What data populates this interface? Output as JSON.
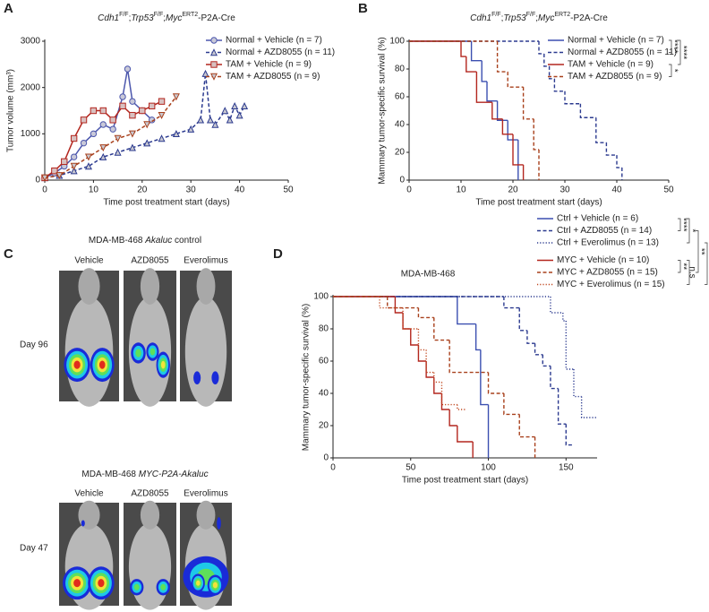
{
  "panel_labels": [
    "A",
    "B",
    "C",
    "D"
  ],
  "chart_data": [
    {
      "type": "line",
      "title": [
        "Cdh1",
        "F/F",
        ";",
        "Trp53",
        "F/F",
        ";",
        "Myc",
        "ERT2",
        "-P2A-Cre"
      ],
      "x_label": "Time post treatment start (days)",
      "y_label": "Tumor volume (mm³)",
      "xlim": [
        0,
        50
      ],
      "xticks": [
        0,
        10,
        20,
        30,
        40,
        50
      ],
      "ylim": [
        0,
        3000
      ],
      "yticks": [
        0,
        1000,
        2000,
        3000
      ],
      "series": [
        {
          "name": "Normal + Vehicle (n = 7)",
          "color": "#4c57ad",
          "dash": "solid",
          "marker": "circle",
          "x": [
            0,
            2,
            4,
            6,
            8,
            10,
            12,
            14,
            16,
            17,
            18,
            20,
            22
          ],
          "values": [
            50,
            150,
            300,
            500,
            800,
            1000,
            1200,
            1100,
            1800,
            2400,
            1700,
            1500,
            1300
          ]
        },
        {
          "name": "Normal + AZD8055 (n = 11)",
          "color": "#2b3a8f",
          "dash": "dashed",
          "marker": "triangle-up",
          "x": [
            0,
            3,
            6,
            9,
            12,
            15,
            18,
            21,
            24,
            27,
            30,
            32,
            33,
            34,
            35,
            37,
            38,
            39,
            40,
            41
          ],
          "values": [
            50,
            100,
            200,
            300,
            500,
            600,
            700,
            800,
            900,
            1000,
            1100,
            1300,
            2300,
            1300,
            1200,
            1500,
            1300,
            1600,
            1400,
            1600
          ]
        },
        {
          "name": "TAM + Vehicle (n = 9)",
          "color": "#b3261e",
          "dash": "solid",
          "marker": "square",
          "x": [
            0,
            2,
            4,
            6,
            8,
            10,
            12,
            14,
            16,
            18,
            20,
            22,
            24
          ],
          "values": [
            50,
            200,
            400,
            900,
            1300,
            1500,
            1500,
            1300,
            1600,
            1400,
            1500,
            1600,
            1700
          ]
        },
        {
          "name": "TAM + AZD8055 (n = 9)",
          "color": "#a8401c",
          "dash": "dashed",
          "marker": "triangle-down",
          "x": [
            0,
            3,
            6,
            9,
            12,
            15,
            18,
            21,
            24,
            27
          ],
          "values": [
            50,
            100,
            300,
            500,
            700,
            900,
            1000,
            1200,
            1400,
            1800
          ]
        }
      ]
    },
    {
      "type": "step",
      "title": [
        "Cdh1",
        "F/F",
        ";",
        "Trp53",
        "F/F",
        ";",
        "Myc",
        "ERT2",
        "-P2A-Cre"
      ],
      "x_label": "Time post treatment start (days)",
      "y_label": "Mammary tumor-specific survival (%)",
      "xlim": [
        0,
        50
      ],
      "xticks": [
        0,
        10,
        20,
        30,
        40,
        50
      ],
      "ylim": [
        0,
        100
      ],
      "yticks": [
        0,
        20,
        40,
        60,
        80,
        100
      ],
      "annotations": [
        "****",
        "*",
        "****"
      ],
      "series": [
        {
          "name": "Normal + Vehicle (n = 7)",
          "color": "#3b4fb0",
          "dash": "solid",
          "x": [
            0,
            12,
            14,
            15,
            17,
            19,
            21
          ],
          "values": [
            100,
            86,
            71,
            57,
            43,
            29,
            0
          ]
        },
        {
          "name": "Normal + AZD8055 (n = 11)",
          "color": "#2b3a8f",
          "dash": "dashed",
          "x": [
            0,
            25,
            26,
            27,
            28,
            30,
            33,
            36,
            38,
            40,
            41
          ],
          "values": [
            100,
            91,
            82,
            73,
            64,
            55,
            45,
            27,
            18,
            9,
            0
          ]
        },
        {
          "name": "TAM + Vehicle (n = 9)",
          "color": "#b3261e",
          "dash": "solid",
          "x": [
            0,
            10,
            11,
            13,
            16,
            18,
            20,
            22
          ],
          "values": [
            100,
            89,
            78,
            56,
            44,
            33,
            11,
            0
          ]
        },
        {
          "name": "TAM + AZD8055 (n = 9)",
          "color": "#a8401c",
          "dash": "dashed",
          "x": [
            0,
            17,
            19,
            22,
            24,
            25
          ],
          "values": [
            100,
            78,
            67,
            44,
            22,
            0
          ]
        }
      ]
    },
    {
      "type": "step",
      "title": "MDA-MB-468",
      "x_label": "Time post treatment start (days)",
      "y_label": "Mammary tumor-specific survival (%)",
      "xlim": [
        0,
        170
      ],
      "xticks": [
        0,
        50,
        100,
        150
      ],
      "ylim": [
        0,
        100
      ],
      "yticks": [
        0,
        20,
        40,
        60,
        80,
        100
      ],
      "annotations": [
        "****",
        "*",
        "**",
        "n.s",
        "**",
        "***"
      ],
      "series": [
        {
          "name": "Ctrl + Vehicle (n = 6)",
          "color": "#3b4fb0",
          "dash": "solid",
          "x": [
            0,
            80,
            92,
            95,
            100
          ],
          "values": [
            100,
            83,
            67,
            33,
            0
          ]
        },
        {
          "name": "Ctrl + AZD8055 (n = 14)",
          "color": "#2b3a8f",
          "dash": "dashed",
          "x": [
            0,
            110,
            120,
            125,
            130,
            135,
            140,
            145,
            150,
            155
          ],
          "values": [
            100,
            93,
            79,
            71,
            64,
            57,
            43,
            21,
            8,
            8
          ]
        },
        {
          "name": "Ctrl + Everolimus (n = 13)",
          "color": "#2b3a8f",
          "dash": "dotted",
          "x": [
            0,
            140,
            148,
            150,
            155,
            160,
            170
          ],
          "values": [
            100,
            90,
            85,
            55,
            38,
            25,
            25
          ]
        },
        {
          "name": "MYC + Vehicle (n = 10)",
          "color": "#b3261e",
          "dash": "solid",
          "x": [
            0,
            40,
            45,
            50,
            55,
            60,
            65,
            70,
            75,
            80,
            90
          ],
          "values": [
            100,
            90,
            80,
            70,
            60,
            50,
            40,
            30,
            20,
            10,
            0
          ]
        },
        {
          "name": "MYC + AZD8055 (n = 15)",
          "color": "#a8401c",
          "dash": "dashed",
          "x": [
            0,
            35,
            55,
            65,
            75,
            100,
            110,
            120,
            130
          ],
          "values": [
            100,
            93,
            87,
            73,
            53,
            40,
            27,
            13,
            0
          ]
        },
        {
          "name": "MYC + Everolimus (n = 15)",
          "color": "#c0471f",
          "dash": "dotted",
          "x": [
            0,
            30,
            45,
            55,
            60,
            65,
            70,
            80,
            85
          ],
          "values": [
            100,
            93,
            80,
            67,
            53,
            47,
            33,
            30,
            30
          ]
        }
      ]
    }
  ],
  "images": {
    "groups": [
      {
        "title": [
          "MDA-MB-468 ",
          "Akaluc",
          " control"
        ],
        "day": "Day 96",
        "columns": [
          "Vehicle",
          "AZD8055",
          "Everolimus"
        ]
      },
      {
        "title": [
          "MDA-MB-468 ",
          "MYC-P2A-Akaluc"
        ],
        "day": "Day 47",
        "columns": [
          "Vehicle",
          "AZD8055",
          "Everolimus"
        ]
      }
    ]
  }
}
